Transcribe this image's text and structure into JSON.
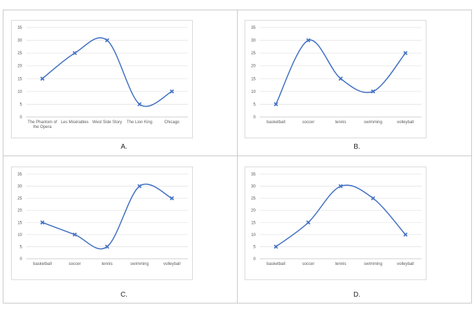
{
  "panels": [
    {
      "label": "A."
    },
    {
      "label": "B."
    },
    {
      "label": "C."
    },
    {
      "label": "D."
    }
  ],
  "chart_data": [
    {
      "type": "line",
      "smooth": true,
      "marker": "x",
      "color": "#4472C4",
      "categories": [
        [
          "The Phantom of",
          "the Opera"
        ],
        [
          "Les Misérables"
        ],
        [
          "West Side Story"
        ],
        [
          "The Lion King"
        ],
        [
          "Chicago"
        ]
      ],
      "values": [
        15,
        25,
        30,
        5,
        10
      ],
      "ylim": [
        0,
        35
      ],
      "yticks": [
        0,
        5,
        10,
        15,
        20,
        25,
        30,
        35
      ],
      "grid": true,
      "title": "",
      "xlabel": "",
      "ylabel": ""
    },
    {
      "type": "line",
      "smooth": true,
      "marker": "x",
      "color": "#4472C4",
      "categories": [
        [
          "basketball"
        ],
        [
          "soccer"
        ],
        [
          "tennis"
        ],
        [
          "swimming"
        ],
        [
          "volleyball"
        ]
      ],
      "values": [
        5,
        30,
        15,
        10,
        25
      ],
      "ylim": [
        0,
        35
      ],
      "yticks": [
        0,
        5,
        10,
        15,
        20,
        25,
        30,
        35
      ],
      "grid": true,
      "title": "",
      "xlabel": "",
      "ylabel": ""
    },
    {
      "type": "line",
      "smooth": true,
      "marker": "x",
      "color": "#4472C4",
      "categories": [
        [
          "basketball"
        ],
        [
          "soccer"
        ],
        [
          "tennis"
        ],
        [
          "swimming"
        ],
        [
          "volleyball"
        ]
      ],
      "values": [
        15,
        10,
        5,
        30,
        25
      ],
      "ylim": [
        0,
        35
      ],
      "yticks": [
        0,
        5,
        10,
        15,
        20,
        25,
        30,
        35
      ],
      "grid": true,
      "title": "",
      "xlabel": "",
      "ylabel": ""
    },
    {
      "type": "line",
      "smooth": true,
      "marker": "x",
      "color": "#4472C4",
      "categories": [
        [
          "basketball"
        ],
        [
          "soccer"
        ],
        [
          "tennis"
        ],
        [
          "swimming"
        ],
        [
          "volleyball"
        ]
      ],
      "values": [
        5,
        15,
        30,
        25,
        10
      ],
      "ylim": [
        0,
        35
      ],
      "yticks": [
        0,
        5,
        10,
        15,
        20,
        25,
        30,
        35
      ],
      "grid": true,
      "title": "",
      "xlabel": "",
      "ylabel": ""
    }
  ]
}
